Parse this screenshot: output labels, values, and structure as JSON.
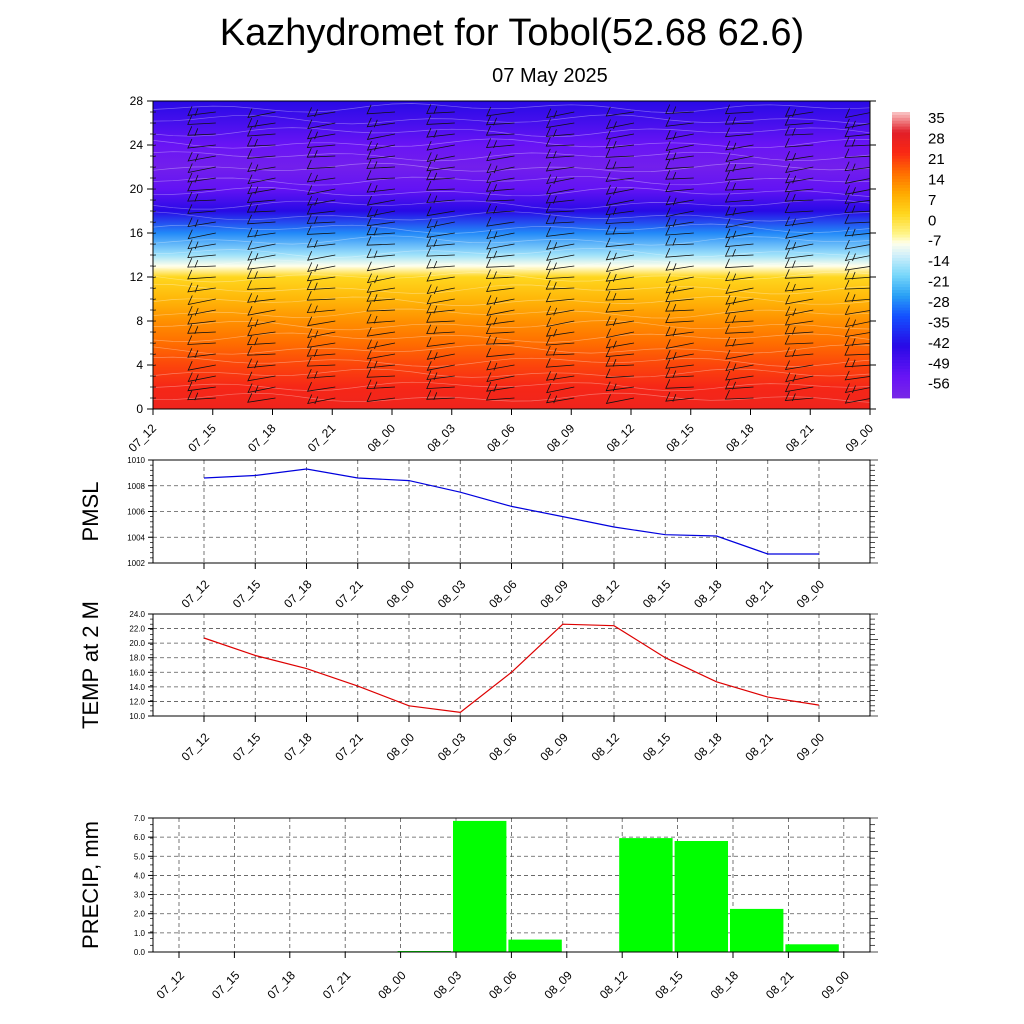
{
  "title": "Kazhydromet for Tobol(52.68 62.6)",
  "subtitle": "07 May 2025",
  "colors": {
    "pmsl_line": "#0000dd",
    "temp_line": "#dd0000",
    "precip_bar": "#00ff00",
    "grid": "#000000"
  },
  "chart_data": [
    {
      "type": "heatmap",
      "title": "",
      "xlabel": "",
      "ylabel": "",
      "x": [
        "07_12",
        "07_15",
        "07_18",
        "07_21",
        "08_00",
        "08_03",
        "08_06",
        "08_09",
        "08_12",
        "08_15",
        "08_18",
        "08_21",
        "09_00"
      ],
      "ylim": [
        0,
        28
      ],
      "yticks": [
        0,
        4,
        8,
        12,
        16,
        20,
        24,
        28
      ],
      "colorbar_labels": [
        "35",
        "28",
        "21",
        "14",
        "7",
        "0",
        "-7",
        "-14",
        "-21",
        "-28",
        "-35",
        "-42",
        "-49",
        "-56"
      ],
      "colorbar_min": -63,
      "colorbar_max": 35,
      "profile_levels": [
        0,
        2,
        4,
        6,
        8,
        10,
        12,
        13,
        14,
        16,
        18,
        20,
        22,
        24,
        26,
        28
      ],
      "profile_values": [
        24,
        22,
        18,
        14,
        10,
        5,
        0,
        -10,
        -18,
        -30,
        -45,
        -55,
        -60,
        -56,
        -50,
        -45
      ],
      "wind_barbs": true
    },
    {
      "type": "line",
      "title": "",
      "ylabel": "PMSL",
      "xlabel": "",
      "ylim": [
        1002,
        1010
      ],
      "yticks": [
        "1002",
        "1004",
        "1006",
        "1008",
        "1010"
      ],
      "grid": true,
      "x": [
        "07_12",
        "07_15",
        "07_18",
        "07_21",
        "08_00",
        "08_03",
        "08_06",
        "08_09",
        "08_12",
        "08_15",
        "08_18",
        "08_21",
        "09_00"
      ],
      "values": [
        1008.6,
        1008.8,
        1009.3,
        1008.6,
        1008.4,
        1007.5,
        1006.4,
        1005.6,
        1004.8,
        1004.2,
        1004.1,
        1002.7,
        1002.7
      ]
    },
    {
      "type": "line",
      "title": "",
      "ylabel": "TEMP at 2 M",
      "xlabel": "",
      "ylim": [
        10,
        24
      ],
      "yticks": [
        "10.0",
        "12.0",
        "14.0",
        "16.0",
        "18.0",
        "20.0",
        "22.0",
        "24.0"
      ],
      "grid": true,
      "x": [
        "07_12",
        "07_15",
        "07_18",
        "07_21",
        "08_00",
        "08_03",
        "08_06",
        "08_09",
        "08_12",
        "08_15",
        "08_18",
        "08_21",
        "09_00"
      ],
      "values": [
        20.7,
        18.3,
        16.5,
        14.1,
        11.4,
        10.5,
        16.0,
        22.6,
        22.4,
        18.0,
        14.7,
        12.6,
        11.5
      ]
    },
    {
      "type": "bar",
      "title": "",
      "ylabel": "PRECIP, mm",
      "xlabel": "",
      "ylim": [
        0,
        7
      ],
      "yticks": [
        "0.0",
        "1.0",
        "2.0",
        "3.0",
        "4.0",
        "5.0",
        "6.0",
        "7.0"
      ],
      "grid": true,
      "categories": [
        "07_12",
        "07_15",
        "07_18",
        "07_21",
        "08_00",
        "08_03",
        "08_06",
        "08_09",
        "08_12",
        "08_15",
        "08_18",
        "08_21",
        "09_00"
      ],
      "values": [
        0,
        0,
        0,
        0,
        0.05,
        6.85,
        0.65,
        0,
        5.95,
        5.8,
        2.25,
        0.4,
        0
      ]
    }
  ]
}
